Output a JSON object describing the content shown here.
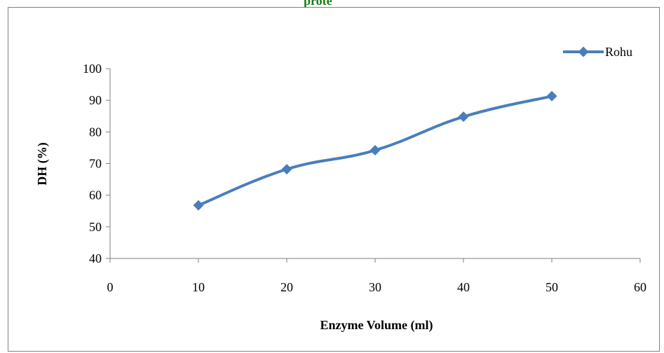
{
  "page": {
    "top_text": "prote"
  },
  "chart_data": {
    "type": "line",
    "title": "",
    "xlabel": "Enzyme Volume (ml)",
    "ylabel": "DH (%)",
    "xlim": [
      0,
      60
    ],
    "ylim": [
      40,
      100
    ],
    "xticks": [
      0,
      10,
      20,
      30,
      40,
      50,
      60
    ],
    "yticks": [
      40,
      50,
      60,
      70,
      80,
      90,
      100
    ],
    "grid": false,
    "legend_position": "top-right",
    "series": [
      {
        "name": "Rohu",
        "color": "#4a7ebb",
        "marker": "diamond",
        "x": [
          10,
          20,
          30,
          40,
          50
        ],
        "y": [
          56.8,
          68.2,
          74.2,
          84.8,
          91.3
        ]
      }
    ]
  }
}
